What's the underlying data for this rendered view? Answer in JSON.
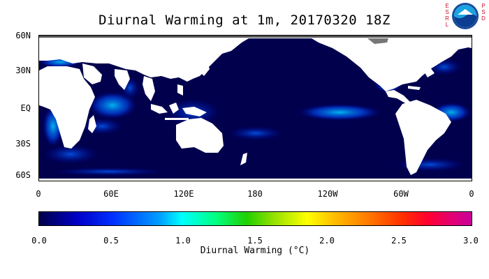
{
  "title": "Diurnal Warming at 1m, 20170320 18Z",
  "logo": {
    "left_letters": [
      "E",
      "S",
      "R",
      "L"
    ],
    "right_letters": [
      "P",
      "S",
      "D"
    ],
    "emblem": "NOAA"
  },
  "y_axis": {
    "ticks": [
      "60N",
      "30N",
      "EQ",
      "30S",
      "60S"
    ]
  },
  "x_axis": {
    "ticks": [
      "0",
      "60E",
      "120E",
      "180",
      "120W",
      "60W",
      "0"
    ]
  },
  "colorbar": {
    "ticks": [
      "0.0",
      "0.5",
      "1.0",
      "1.5",
      "2.0",
      "2.5",
      "3.0"
    ],
    "label": "Diurnal Warming (°C)",
    "range": [
      0.0,
      3.0
    ]
  },
  "colors": {
    "ocean_base": "#00004d",
    "land": "#ffffff",
    "high_warming": "#00c8ff"
  }
}
